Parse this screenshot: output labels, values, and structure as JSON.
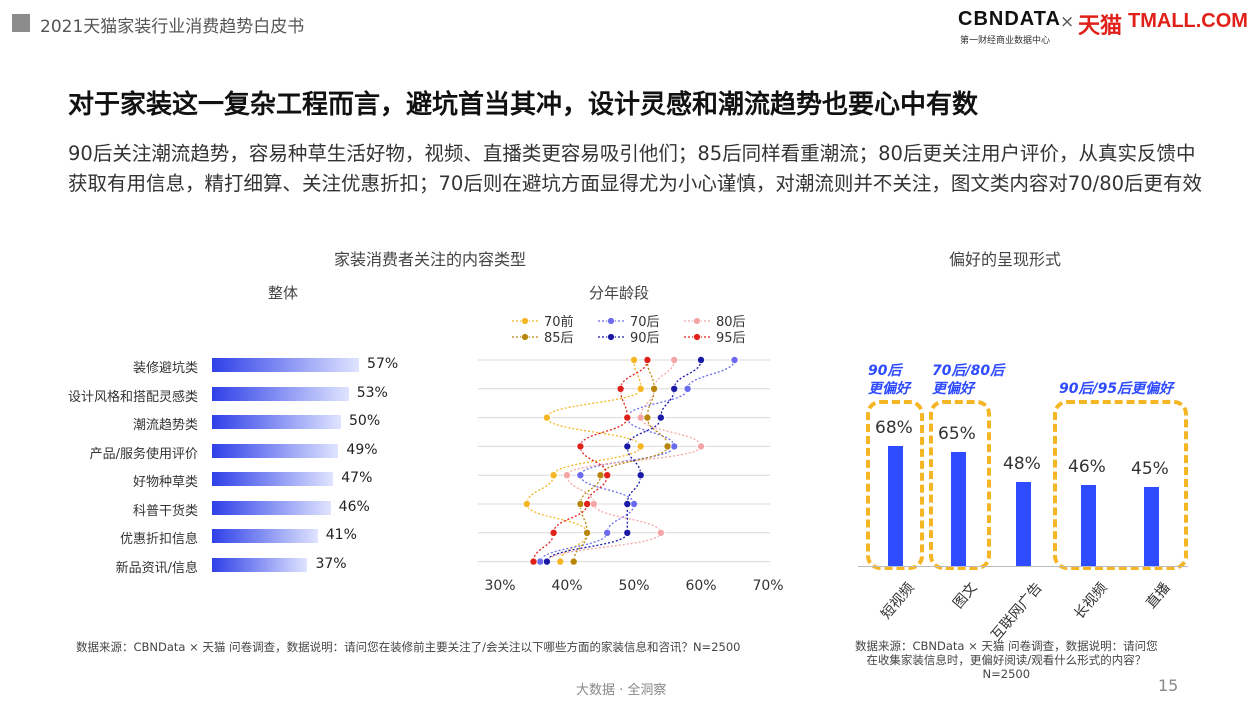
{
  "header": {
    "report_title": "2021天猫家装行业消费趋势白皮书",
    "logo_cbn": "CBNDATA",
    "logo_cbn_sub": "第一财经商业数据中心",
    "logo_x": "×",
    "logo_tmall_cn": "天猫",
    "logo_tmall_en": "TMALL.COM"
  },
  "main_title": "对于家装这一复杂工程而言，避坑首当其冲，设计灵感和潮流趋势也要心中有数",
  "summary": "90后关注潮流趋势，容易种草生活好物，视频、直播类更容易吸引他们；85后同样看重潮流；80后更关注用户评价，从真实反馈中获取有用信息，精打细算、关注优惠折扣；70后则在避坑方面显得尤为小心谨慎，对潮流则并不关注，图文类内容对70/80后更有效",
  "left_chart_title": "家装消费者关注的内容类型",
  "overall_title": "整体",
  "age_title": "分年龄段",
  "right_chart_title": "偏好的呈现形式",
  "callouts": {
    "a": "90后\n更偏好",
    "b": "70后/80后\n更偏好",
    "c": "90后/95后更偏好"
  },
  "source_left": "数据来源：CBNData × 天猫 问卷调查，数据说明：请问您在装修前主要关注了/会关注以下哪些方面的家装信息和咨讯？N=2500",
  "source_right": "数据来源：CBNData × 天猫 问卷调查，数据说明：请问您\n在收集家装信息时，更偏好阅读/观看什么形式的内容？\nN=2500",
  "footer_center": "大数据 · 全洞察",
  "page_number": "15",
  "colors": {
    "bar_blue": "#2f4bff",
    "callout_yellow": "#f5b625",
    "s70": "#f5b625",
    "s85": "#b8860b",
    "s80": "#f4a6a6",
    "s70hou": "#6b6bef",
    "s90": "#1a1aa6",
    "s95": "#e0211a"
  },
  "chart_data": [
    {
      "type": "bar",
      "orientation": "horizontal",
      "title": "整体",
      "categories": [
        "装修避坑类",
        "设计风格和搭配灵感类",
        "潮流趋势类",
        "产品/服务使用评价",
        "好物种草类",
        "科普干货类",
        "优惠折扣信息",
        "新品资讯/信息"
      ],
      "values": [
        57,
        53,
        50,
        49,
        47,
        46,
        41,
        37
      ],
      "value_labels": [
        "57%",
        "53%",
        "50%",
        "49%",
        "47%",
        "46%",
        "41%",
        "37%"
      ]
    },
    {
      "type": "scatter",
      "title": "分年龄段",
      "categories": [
        "装修避坑类",
        "设计风格和搭配灵感类",
        "潮流趋势类",
        "产品/服务使用评价",
        "好物种草类",
        "科普干货类",
        "优惠折扣信息",
        "新品资讯/信息"
      ],
      "xlim": [
        30,
        70
      ],
      "xticks": [
        "30%",
        "40%",
        "50%",
        "60%",
        "70%"
      ],
      "series": [
        {
          "name": "70前",
          "values": [
            50,
            51,
            37,
            51,
            38,
            34,
            43,
            39
          ]
        },
        {
          "name": "70后",
          "values": [
            65,
            58,
            49,
            56,
            42,
            50,
            46,
            36
          ]
        },
        {
          "name": "80后",
          "values": [
            56,
            53,
            51,
            60,
            40,
            44,
            54,
            37
          ]
        },
        {
          "name": "85后",
          "values": [
            52,
            53,
            52,
            55,
            45,
            42,
            43,
            41
          ]
        },
        {
          "name": "90后",
          "values": [
            60,
            56,
            54,
            49,
            51,
            49,
            49,
            37
          ]
        },
        {
          "name": "95后",
          "values": [
            52,
            48,
            49,
            42,
            46,
            43,
            38,
            35
          ]
        }
      ],
      "legend_position": "top"
    },
    {
      "type": "bar",
      "title": "偏好的呈现形式",
      "categories": [
        "短视频",
        "图文",
        "互联网广告",
        "长视频",
        "直播"
      ],
      "values": [
        68,
        65,
        48,
        46,
        45
      ],
      "value_labels": [
        "68%",
        "65%",
        "48%",
        "46%",
        "45%"
      ]
    }
  ]
}
